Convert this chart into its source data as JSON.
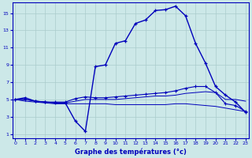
{
  "title": "Graphe des températures (°c)",
  "bg_color": "#cce8e8",
  "line_color": "#0000bb",
  "grid_color": "#aacccc",
  "x_ticks": [
    0,
    1,
    2,
    3,
    4,
    5,
    6,
    7,
    8,
    9,
    10,
    11,
    12,
    13,
    14,
    15,
    16,
    17,
    18,
    19,
    20,
    21,
    22,
    23
  ],
  "y_ticks": [
    1,
    3,
    5,
    7,
    9,
    11,
    13,
    15
  ],
  "ylim": [
    0.5,
    16.2
  ],
  "xlim": [
    -0.3,
    23.3
  ],
  "line1_x": [
    0,
    1,
    2,
    3,
    4,
    5,
    6,
    7,
    8,
    9,
    10,
    11,
    12,
    13,
    14,
    15,
    16,
    17,
    18,
    19,
    20,
    21,
    22,
    23
  ],
  "line1_y": [
    5.0,
    5.2,
    4.8,
    4.7,
    4.6,
    4.6,
    2.5,
    1.3,
    8.8,
    9.0,
    11.5,
    11.8,
    13.8,
    14.2,
    15.3,
    15.4,
    15.8,
    14.7,
    11.5,
    9.2,
    6.5,
    5.5,
    4.7,
    3.5
  ],
  "line2_x": [
    0,
    1,
    2,
    3,
    4,
    5,
    6,
    7,
    8,
    9,
    10,
    11,
    12,
    13,
    14,
    15,
    16,
    17,
    18,
    19,
    20,
    21,
    22,
    23
  ],
  "line2_y": [
    5.0,
    5.0,
    4.8,
    4.7,
    4.7,
    4.7,
    5.1,
    5.3,
    5.2,
    5.2,
    5.3,
    5.4,
    5.5,
    5.6,
    5.7,
    5.8,
    6.0,
    6.3,
    6.5,
    6.5,
    5.8,
    4.5,
    4.3,
    3.6
  ],
  "line3_x": [
    0,
    1,
    2,
    3,
    4,
    5,
    6,
    7,
    8,
    9,
    10,
    11,
    12,
    13,
    14,
    15,
    16,
    17,
    18,
    19,
    20,
    21,
    22,
    23
  ],
  "line3_y": [
    5.0,
    5.0,
    4.8,
    4.7,
    4.6,
    4.6,
    4.8,
    5.0,
    5.0,
    5.0,
    5.0,
    5.1,
    5.2,
    5.3,
    5.4,
    5.4,
    5.5,
    5.7,
    5.8,
    5.9,
    5.8,
    5.0,
    5.0,
    4.8
  ],
  "line4_x": [
    0,
    1,
    2,
    3,
    4,
    5,
    6,
    7,
    8,
    9,
    10,
    11,
    12,
    13,
    14,
    15,
    16,
    17,
    18,
    19,
    20,
    21,
    22,
    23
  ],
  "line4_y": [
    5.0,
    4.8,
    4.7,
    4.6,
    4.5,
    4.5,
    4.5,
    4.5,
    4.5,
    4.5,
    4.4,
    4.4,
    4.4,
    4.4,
    4.4,
    4.4,
    4.5,
    4.5,
    4.4,
    4.3,
    4.2,
    4.0,
    3.8,
    3.6
  ]
}
